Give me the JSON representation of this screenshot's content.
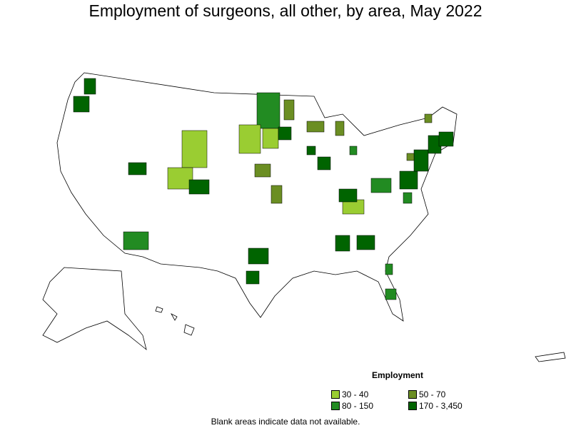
{
  "title": "Employment of surgeons, all other, by area, May 2022",
  "legend": {
    "title": "Employment",
    "items": [
      {
        "label": "30 - 40",
        "color": "#9acd32"
      },
      {
        "label": "50 - 70",
        "color": "#6b8e23"
      },
      {
        "label": "80 - 150",
        "color": "#228b22"
      },
      {
        "label": "170 - 3,450",
        "color": "#006400"
      }
    ]
  },
  "note": "Blank areas indicate data not available."
}
